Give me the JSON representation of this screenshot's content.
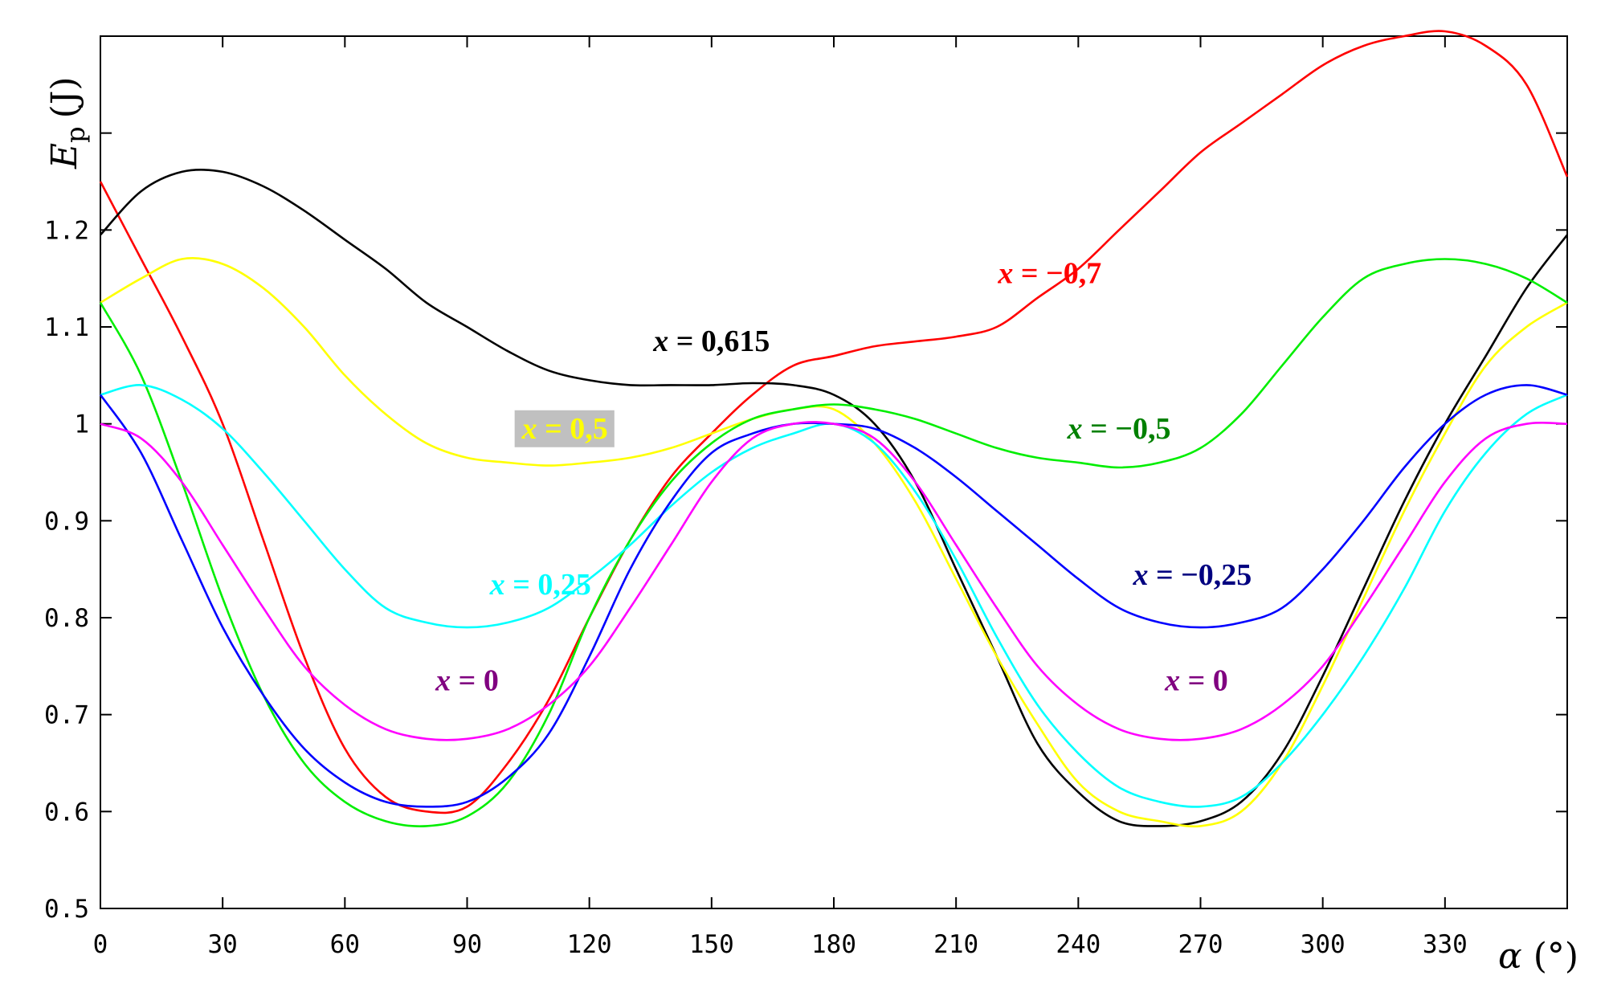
{
  "chart_data": {
    "type": "line",
    "title": "",
    "xlabel": {
      "symbol": "α",
      "unit": "(°)"
    },
    "ylabel": {
      "symbol": "E",
      "subscript": "p",
      "unit": "(J)"
    },
    "xlim": [
      0,
      360
    ],
    "ylim": [
      0.5,
      1.4
    ],
    "xticks": [
      "0",
      "30",
      "60",
      "90",
      "120",
      "150",
      "180",
      "210",
      "240",
      "270",
      "300",
      "330"
    ],
    "yticks": [
      {
        "value": 0.5,
        "label": "0.5"
      },
      {
        "value": 0.6,
        "label": "0.6"
      },
      {
        "value": 0.7,
        "label": "0.7"
      },
      {
        "value": 0.8,
        "label": "0.8"
      },
      {
        "value": 0.9,
        "label": "0.9"
      },
      {
        "value": 1.0,
        "label": "1"
      },
      {
        "value": 1.1,
        "label": "1.1"
      },
      {
        "value": 1.2,
        "label": "1.2"
      },
      {
        "value": 1.3,
        "label": ""
      }
    ],
    "grid": false,
    "x": [
      0,
      10,
      20,
      30,
      40,
      50,
      60,
      70,
      80,
      90,
      100,
      110,
      120,
      130,
      140,
      150,
      160,
      170,
      180,
      190,
      200,
      210,
      220,
      230,
      240,
      250,
      260,
      270,
      280,
      290,
      300,
      310,
      320,
      330,
      340,
      350,
      360
    ],
    "series": [
      {
        "key": "x_-0.7",
        "color": "#ff0000",
        "values": [
          1.25,
          1.17,
          1.09,
          1.0,
          0.88,
          0.76,
          0.665,
          0.615,
          0.6,
          0.605,
          0.65,
          0.715,
          0.8,
          0.88,
          0.945,
          0.99,
          1.03,
          1.06,
          1.07,
          1.08,
          1.085,
          1.09,
          1.1,
          1.13,
          1.16,
          1.2,
          1.24,
          1.28,
          1.31,
          1.34,
          1.37,
          1.39,
          1.4,
          1.405,
          1.39,
          1.35,
          1.255
        ]
      },
      {
        "key": "x_0.615",
        "color": "#000000",
        "values": [
          1.195,
          1.24,
          1.26,
          1.26,
          1.245,
          1.22,
          1.19,
          1.16,
          1.125,
          1.1,
          1.075,
          1.055,
          1.045,
          1.04,
          1.04,
          1.04,
          1.042,
          1.04,
          1.03,
          1.0,
          0.94,
          0.85,
          0.76,
          0.67,
          0.62,
          0.59,
          0.585,
          0.59,
          0.61,
          0.66,
          0.74,
          0.83,
          0.92,
          1.0,
          1.07,
          1.14,
          1.195
        ]
      },
      {
        "key": "x_0.5",
        "color": "#ffff00",
        "values": [
          1.125,
          1.15,
          1.17,
          1.165,
          1.14,
          1.1,
          1.05,
          1.01,
          0.98,
          0.965,
          0.96,
          0.957,
          0.96,
          0.965,
          0.975,
          0.99,
          1.005,
          1.015,
          1.015,
          0.98,
          0.92,
          0.84,
          0.76,
          0.69,
          0.63,
          0.6,
          0.59,
          0.585,
          0.6,
          0.65,
          0.73,
          0.82,
          0.91,
          0.99,
          1.06,
          1.1,
          1.125
        ]
      },
      {
        "key": "x_-0.5",
        "color": "#00ee00",
        "values": [
          1.125,
          1.05,
          0.94,
          0.82,
          0.72,
          0.65,
          0.61,
          0.59,
          0.585,
          0.595,
          0.63,
          0.7,
          0.8,
          0.88,
          0.94,
          0.98,
          1.005,
          1.015,
          1.02,
          1.015,
          1.005,
          0.99,
          0.975,
          0.965,
          0.96,
          0.955,
          0.96,
          0.975,
          1.01,
          1.06,
          1.11,
          1.15,
          1.165,
          1.17,
          1.165,
          1.15,
          1.125
        ]
      },
      {
        "key": "x_0.25",
        "color": "#00ffff",
        "values": [
          1.03,
          1.04,
          1.025,
          0.995,
          0.95,
          0.9,
          0.85,
          0.81,
          0.795,
          0.79,
          0.795,
          0.81,
          0.84,
          0.875,
          0.915,
          0.95,
          0.975,
          0.99,
          1.0,
          0.98,
          0.93,
          0.86,
          0.78,
          0.71,
          0.66,
          0.625,
          0.61,
          0.605,
          0.615,
          0.65,
          0.7,
          0.76,
          0.83,
          0.91,
          0.97,
          1.01,
          1.03
        ]
      },
      {
        "key": "x_-0.25",
        "color": "#0000ff",
        "values": [
          1.03,
          0.97,
          0.88,
          0.79,
          0.72,
          0.665,
          0.63,
          0.61,
          0.605,
          0.61,
          0.635,
          0.68,
          0.76,
          0.85,
          0.92,
          0.97,
          0.99,
          1.0,
          1.0,
          0.995,
          0.975,
          0.945,
          0.91,
          0.875,
          0.84,
          0.81,
          0.795,
          0.79,
          0.795,
          0.81,
          0.85,
          0.9,
          0.955,
          1.0,
          1.03,
          1.04,
          1.03
        ]
      },
      {
        "key": "x_0",
        "color": "#ff00ff",
        "values": [
          1.0,
          0.985,
          0.94,
          0.875,
          0.81,
          0.75,
          0.71,
          0.685,
          0.675,
          0.675,
          0.685,
          0.71,
          0.75,
          0.81,
          0.875,
          0.94,
          0.985,
          1.0,
          1.0,
          0.985,
          0.94,
          0.875,
          0.81,
          0.75,
          0.71,
          0.685,
          0.675,
          0.675,
          0.685,
          0.71,
          0.75,
          0.81,
          0.875,
          0.94,
          0.985,
          1.0,
          1.0
        ]
      }
    ],
    "annotations": [
      {
        "id": "ann-x-0.615",
        "var": "x",
        "text": " = 0,615",
        "color": "#000000",
        "at": [
          150,
          1.075
        ]
      },
      {
        "id": "ann-x-0.5",
        "var": "x",
        "text": " = 0,5",
        "color": "#ffff00",
        "background": "#c0c0c0",
        "at": [
          114,
          0.985
        ]
      },
      {
        "id": "ann-x-0.25",
        "var": "x",
        "text": " = 0,25",
        "color": "#00ffff",
        "at": [
          108,
          0.824
        ]
      },
      {
        "id": "ann-x-0-left",
        "var": "x",
        "text": " = 0",
        "color": "#800080",
        "at": [
          90,
          0.725
        ]
      },
      {
        "id": "ann-x-neg-0.7",
        "var": "x",
        "text": " = −0,7",
        "color": "#ff0000",
        "at": [
          233,
          1.145
        ]
      },
      {
        "id": "ann-x-neg-0.5",
        "var": "x",
        "text": " = −0,5",
        "color": "#008000",
        "at": [
          250,
          0.985
        ]
      },
      {
        "id": "ann-x-neg-0.25",
        "var": "x",
        "text": " = −0,25",
        "color": "#000080",
        "at": [
          268,
          0.834
        ]
      },
      {
        "id": "ann-x-0-right",
        "var": "x",
        "text": " = 0",
        "color": "#800080",
        "at": [
          269,
          0.725
        ]
      }
    ]
  }
}
